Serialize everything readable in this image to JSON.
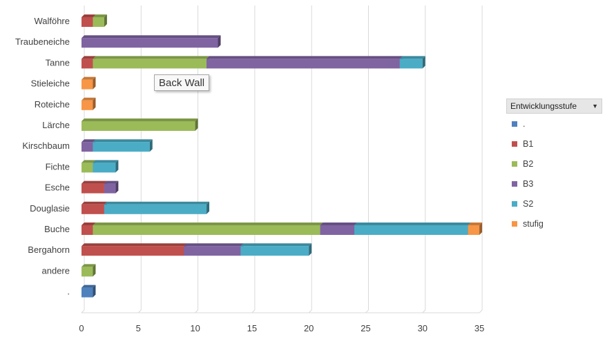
{
  "chart_data": {
    "type": "bar",
    "orientation": "horizontal",
    "stacked": true,
    "style": "3d",
    "categories": [
      "Walföhre",
      "Traubeneiche",
      "Tanne",
      "Stieleiche",
      "Roteiche",
      "Lärche",
      "Kirschbaum",
      "Fichte",
      "Esche",
      "Douglasie",
      "Buche",
      "Bergahorn",
      "andere",
      "."
    ],
    "series": [
      {
        "name": ".",
        "color": "#4f81bd",
        "values": [
          0,
          0,
          0,
          0,
          0,
          0,
          0,
          0,
          0,
          0,
          0,
          0,
          0,
          1
        ]
      },
      {
        "name": "B1",
        "color": "#c0504d",
        "values": [
          1,
          0,
          1,
          0,
          0,
          0,
          0,
          0,
          2,
          2,
          1,
          9,
          0,
          0
        ]
      },
      {
        "name": "B2",
        "color": "#9bbb59",
        "values": [
          1,
          0,
          10,
          0,
          0,
          10,
          0,
          1,
          0,
          0,
          20,
          0,
          1,
          0
        ]
      },
      {
        "name": "B3",
        "color": "#8064a2",
        "values": [
          0,
          12,
          17,
          0,
          0,
          0,
          1,
          0,
          1,
          0,
          3,
          5,
          0,
          0
        ]
      },
      {
        "name": "S2",
        "color": "#4bacc6",
        "values": [
          0,
          0,
          2,
          0,
          0,
          0,
          5,
          2,
          0,
          9,
          10,
          6,
          0,
          0
        ]
      },
      {
        "name": "stufig",
        "color": "#f79646",
        "values": [
          0,
          0,
          0,
          1,
          1,
          0,
          0,
          0,
          0,
          0,
          1,
          0,
          0,
          0
        ]
      }
    ],
    "xlim": [
      0,
      35
    ],
    "xticks": [
      "0",
      "5",
      "10",
      "15",
      "20",
      "25",
      "30",
      "35"
    ],
    "grid": true,
    "legend_position": "right",
    "title": "",
    "xlabel": "",
    "ylabel": ""
  },
  "legend": {
    "title": "Entwicklungsstufe",
    "dropdown_icon": "triangle-down-icon"
  },
  "tooltip": {
    "text": "Back Wall"
  }
}
